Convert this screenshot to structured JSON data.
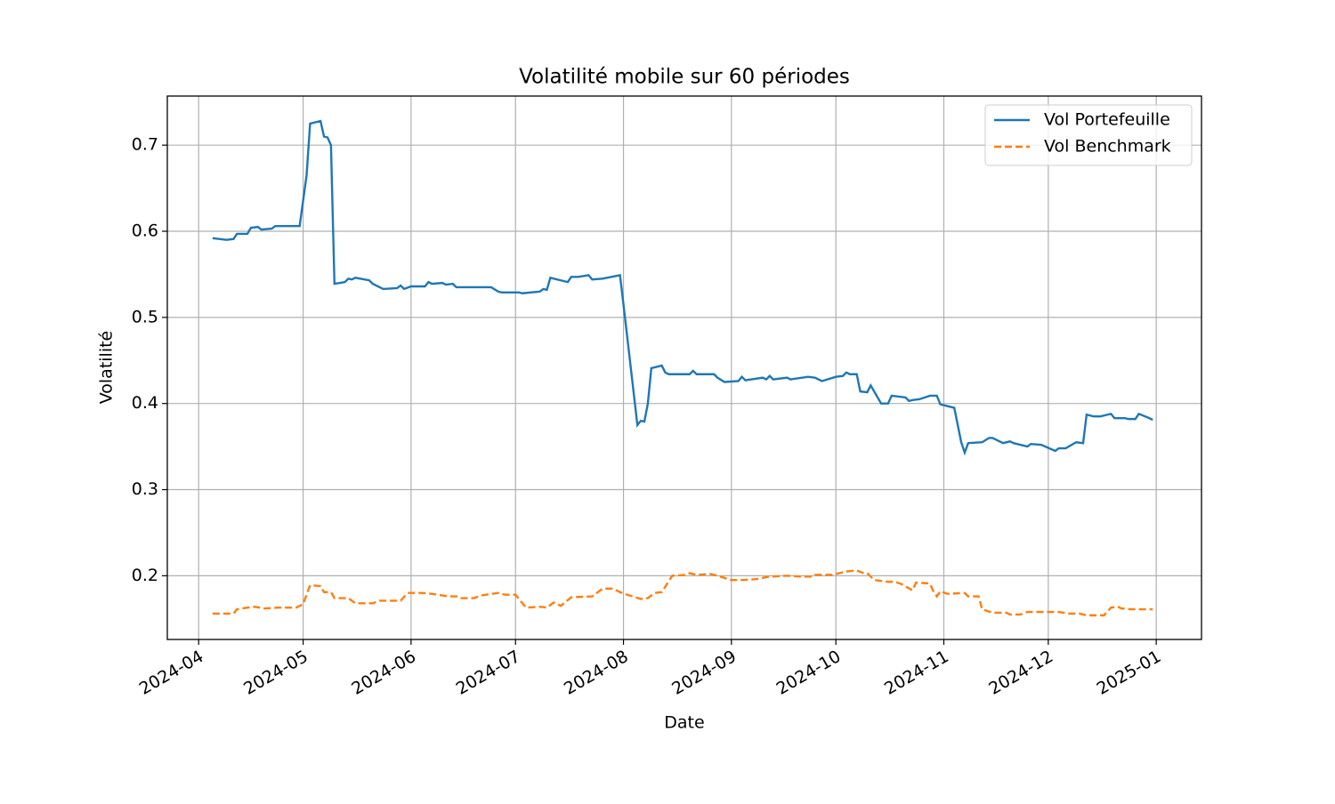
{
  "chart_data": {
    "type": "line",
    "title": "Volatilité mobile sur 60 périodes",
    "x_label": "Date",
    "y_label": "Volatilité",
    "xlim": [
      19805,
      20102
    ],
    "ylim": [
      0.126,
      0.757
    ],
    "xticks": [
      {
        "value": 19814,
        "label": "2024-04"
      },
      {
        "value": 19844,
        "label": "2024-05"
      },
      {
        "value": 19875,
        "label": "2024-06"
      },
      {
        "value": 19905,
        "label": "2024-07"
      },
      {
        "value": 19936,
        "label": "2024-08"
      },
      {
        "value": 19967,
        "label": "2024-09"
      },
      {
        "value": 19997,
        "label": "2024-10"
      },
      {
        "value": 20028,
        "label": "2024-11"
      },
      {
        "value": 20058,
        "label": "2024-12"
      },
      {
        "value": 20089,
        "label": "2025-01"
      }
    ],
    "yticks": [
      0.2,
      0.3,
      0.4,
      0.5,
      0.6,
      0.7
    ],
    "grid": true,
    "legend": "upper-right",
    "series": [
      {
        "name": "Vol Portefeuille",
        "color": "#1f77b4",
        "dash": "solid",
        "x": [
          19818,
          19822,
          19824,
          19825,
          19828,
          19829,
          19831,
          19832,
          19835,
          19836,
          19843,
          19845,
          19846,
          19849,
          19850,
          19851,
          19852,
          19853,
          19856,
          19857,
          19858,
          19859,
          19863,
          19864,
          19867,
          19871,
          19872,
          19873,
          19875,
          19879,
          19880,
          19881,
          19884,
          19885,
          19887,
          19888,
          19894,
          19898,
          19900,
          19901,
          19906,
          19907,
          19912,
          19913,
          19914,
          19915,
          19920,
          19921,
          19923,
          19926,
          19927,
          19930,
          19935,
          19936,
          19940,
          19941,
          19942,
          19943,
          19944,
          19947,
          19948,
          19949,
          19955,
          19956,
          19957,
          19962,
          19963,
          19965,
          19969,
          19970,
          19971,
          19976,
          19977,
          19978,
          19979,
          19983,
          19984,
          19989,
          19991,
          19993,
          19997,
          19999,
          20000,
          20001,
          20003,
          20004,
          20006,
          20007,
          20010,
          20012,
          20013,
          20017,
          20018,
          20019,
          20021,
          20024,
          20026,
          20027,
          20031,
          20033,
          20034,
          20035,
          20039,
          20041,
          20042,
          20045,
          20047,
          20048,
          20052,
          20053,
          20056,
          20060,
          20061,
          20063,
          20066,
          20068,
          20069,
          20071,
          20073,
          20075,
          20076,
          20077,
          20080,
          20081,
          20083,
          20084,
          20087,
          20088
        ],
        "values": [
          0.592,
          0.59,
          0.591,
          0.597,
          0.597,
          0.604,
          0.605,
          0.602,
          0.603,
          0.606,
          0.606,
          0.665,
          0.725,
          0.728,
          0.71,
          0.709,
          0.7,
          0.539,
          0.541,
          0.545,
          0.544,
          0.546,
          0.543,
          0.539,
          0.533,
          0.534,
          0.537,
          0.533,
          0.536,
          0.536,
          0.541,
          0.539,
          0.54,
          0.538,
          0.539,
          0.535,
          0.535,
          0.535,
          0.53,
          0.529,
          0.529,
          0.528,
          0.53,
          0.533,
          0.532,
          0.546,
          0.541,
          0.547,
          0.547,
          0.549,
          0.544,
          0.545,
          0.549,
          0.515,
          0.375,
          0.38,
          0.379,
          0.4,
          0.441,
          0.444,
          0.436,
          0.434,
          0.434,
          0.438,
          0.434,
          0.434,
          0.43,
          0.425,
          0.426,
          0.431,
          0.427,
          0.43,
          0.428,
          0.432,
          0.428,
          0.43,
          0.428,
          0.431,
          0.43,
          0.426,
          0.431,
          0.432,
          0.436,
          0.434,
          0.434,
          0.414,
          0.413,
          0.421,
          0.4,
          0.4,
          0.409,
          0.407,
          0.403,
          0.404,
          0.405,
          0.409,
          0.409,
          0.399,
          0.395,
          0.355,
          0.343,
          0.354,
          0.355,
          0.36,
          0.36,
          0.354,
          0.356,
          0.354,
          0.35,
          0.353,
          0.352,
          0.345,
          0.348,
          0.348,
          0.355,
          0.354,
          0.387,
          0.385,
          0.385,
          0.387,
          0.388,
          0.383,
          0.383,
          0.382,
          0.382,
          0.388,
          0.383,
          0.381
        ]
      },
      {
        "name": "Vol Benchmark",
        "color": "#ff7f0e",
        "dash": "dashed",
        "x": [
          19818,
          19822,
          19824,
          19825,
          19828,
          19830,
          19833,
          19837,
          19842,
          19844,
          19846,
          19849,
          19850,
          19852,
          19853,
          19857,
          19859,
          19864,
          19866,
          19872,
          19874,
          19878,
          19881,
          19884,
          19886,
          19888,
          19889,
          19893,
          19895,
          19900,
          19902,
          19905,
          19908,
          19912,
          19914,
          19916,
          19918,
          19921,
          19927,
          19930,
          19933,
          19935,
          19937,
          19941,
          19943,
          19945,
          19947,
          19950,
          19954,
          19955,
          19957,
          19961,
          19963,
          19967,
          19970,
          19974,
          19978,
          19983,
          19987,
          19990,
          19991,
          19996,
          20000,
          20003,
          20005,
          20006,
          20008,
          20012,
          20014,
          20016,
          20019,
          20020,
          20024,
          20025,
          20026,
          20027,
          20029,
          20034,
          20035,
          20038,
          20039,
          20042,
          20046,
          20047,
          20050,
          20052,
          20056,
          20061,
          20064,
          20067,
          20069,
          20074,
          20076,
          20078,
          20079,
          20082,
          20088
        ],
        "values": [
          0.156,
          0.156,
          0.156,
          0.161,
          0.163,
          0.164,
          0.162,
          0.163,
          0.163,
          0.167,
          0.189,
          0.188,
          0.181,
          0.181,
          0.174,
          0.174,
          0.168,
          0.168,
          0.171,
          0.171,
          0.18,
          0.18,
          0.179,
          0.177,
          0.176,
          0.176,
          0.174,
          0.174,
          0.177,
          0.18,
          0.178,
          0.178,
          0.163,
          0.164,
          0.163,
          0.169,
          0.165,
          0.175,
          0.176,
          0.185,
          0.185,
          0.181,
          0.178,
          0.173,
          0.174,
          0.18,
          0.181,
          0.2,
          0.201,
          0.203,
          0.201,
          0.202,
          0.2,
          0.195,
          0.195,
          0.196,
          0.199,
          0.2,
          0.199,
          0.199,
          0.201,
          0.201,
          0.205,
          0.206,
          0.203,
          0.203,
          0.195,
          0.193,
          0.193,
          0.19,
          0.183,
          0.192,
          0.191,
          0.182,
          0.176,
          0.182,
          0.179,
          0.18,
          0.176,
          0.176,
          0.161,
          0.157,
          0.157,
          0.155,
          0.155,
          0.158,
          0.158,
          0.158,
          0.156,
          0.156,
          0.154,
          0.154,
          0.163,
          0.164,
          0.162,
          0.161,
          0.161
        ]
      }
    ]
  }
}
